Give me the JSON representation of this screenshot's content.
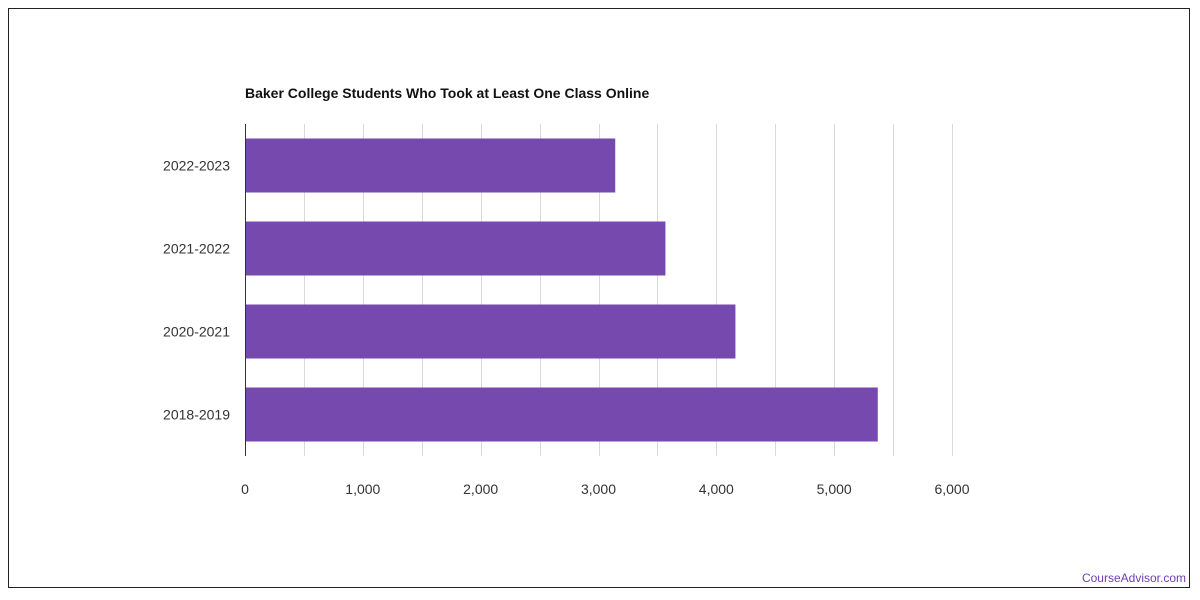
{
  "chart_data": {
    "type": "bar",
    "orientation": "horizontal",
    "title": "Baker College Students Who Took at Least One Class Online",
    "categories": [
      "2022-2023",
      "2021-2022",
      "2020-2021",
      "2018-2019"
    ],
    "values": [
      3142,
      3568,
      4162,
      5370
    ],
    "xlim": [
      0,
      6000
    ],
    "xticks": [
      0,
      1000,
      2000,
      3000,
      4000,
      5000,
      6000
    ],
    "xtick_labels": [
      "0",
      "1,000",
      "2,000",
      "3,000",
      "4,000",
      "5,000",
      "6,000"
    ],
    "xlabel": "",
    "ylabel": "",
    "grid": true,
    "bar_color": "#7549ae",
    "grid_color": "#d9d9d9"
  },
  "watermark": {
    "text": "CourseAdvisor.com",
    "color": "#6e3fb0"
  }
}
